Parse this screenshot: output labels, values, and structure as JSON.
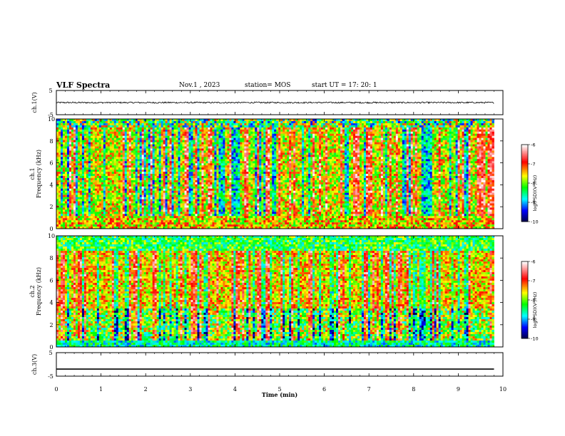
{
  "header": {
    "title": "VLF Spectra",
    "date": "Nov.1  , 2023",
    "station": "station= MOS",
    "start": "start  UT  =   17: 20: 1"
  },
  "chart_data": [
    {
      "type": "line",
      "panel": "ch1-waveform",
      "ylabel": "ch.1(V)",
      "yticks": [
        "5",
        "-5"
      ],
      "ylim": [
        -5,
        5
      ],
      "x": [
        0,
        9.8
      ],
      "y_mean": 0.0,
      "noise_amplitude": 0.3
    },
    {
      "type": "heatmap",
      "panel": "ch1-spectrogram",
      "ylabel": "ch.1  Frequency (kHz)",
      "yticks": [
        "0",
        "2",
        "4",
        "6",
        "8",
        "10"
      ],
      "ylim": [
        0,
        10
      ],
      "xlim": [
        0,
        9.8
      ],
      "colorbar": {
        "label": "log(PSD)(V²/Hz)",
        "ticks": [
          "-6",
          "-7",
          "-8",
          "-9",
          "-10"
        ],
        "range": [
          -10,
          -6
        ],
        "colors": [
          "#000040",
          "#0000ff",
          "#00ffff",
          "#00ff00",
          "#ffff00",
          "#ff0000",
          "#ffffff"
        ]
      }
    },
    {
      "type": "heatmap",
      "panel": "ch2-spectrogram",
      "ylabel": "ch.2  Frequency (kHz)",
      "yticks": [
        "0",
        "2",
        "4",
        "6",
        "8",
        "10"
      ],
      "ylim": [
        0,
        10
      ],
      "xlim": [
        0,
        9.8
      ],
      "colorbar": {
        "label": "log(PSD)(V²/Hz)",
        "ticks": [
          "-6",
          "-7",
          "-8",
          "-9",
          "-10"
        ],
        "range": [
          -10,
          -6
        ],
        "colors": [
          "#000040",
          "#0000ff",
          "#00ffff",
          "#00ff00",
          "#ffff00",
          "#ff0000",
          "#ffffff"
        ]
      }
    },
    {
      "type": "line",
      "panel": "ch3-waveform",
      "ylabel": "ch.3(V)",
      "yticks": [
        "5",
        "-5"
      ],
      "ylim": [
        -5,
        5
      ],
      "x": [
        0,
        9.8
      ],
      "y_mean": -2.0
    }
  ],
  "xaxis": {
    "label": "Time  (min)",
    "ticks": [
      "0",
      "1",
      "2",
      "3",
      "4",
      "5",
      "6",
      "7",
      "8",
      "9",
      "10"
    ],
    "xlim": [
      0,
      10
    ]
  }
}
